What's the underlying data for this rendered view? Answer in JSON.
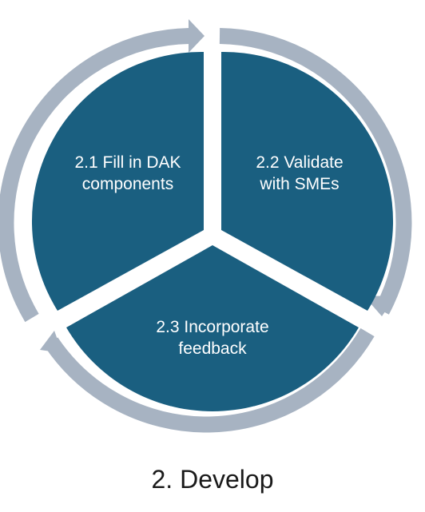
{
  "diagram": {
    "segments": [
      {
        "label": "2.1 Fill in DAK\ncomponents"
      },
      {
        "label": "2.2 Validate\nwith SMEs"
      },
      {
        "label": "2.3 Incorporate\nfeedback"
      }
    ],
    "caption": "2. Develop",
    "colors": {
      "segment_fill": "#1a5f80",
      "arrow_ring": "#a7b3c2",
      "label_text": "#ffffff",
      "caption_text": "#1a1a1a"
    }
  }
}
